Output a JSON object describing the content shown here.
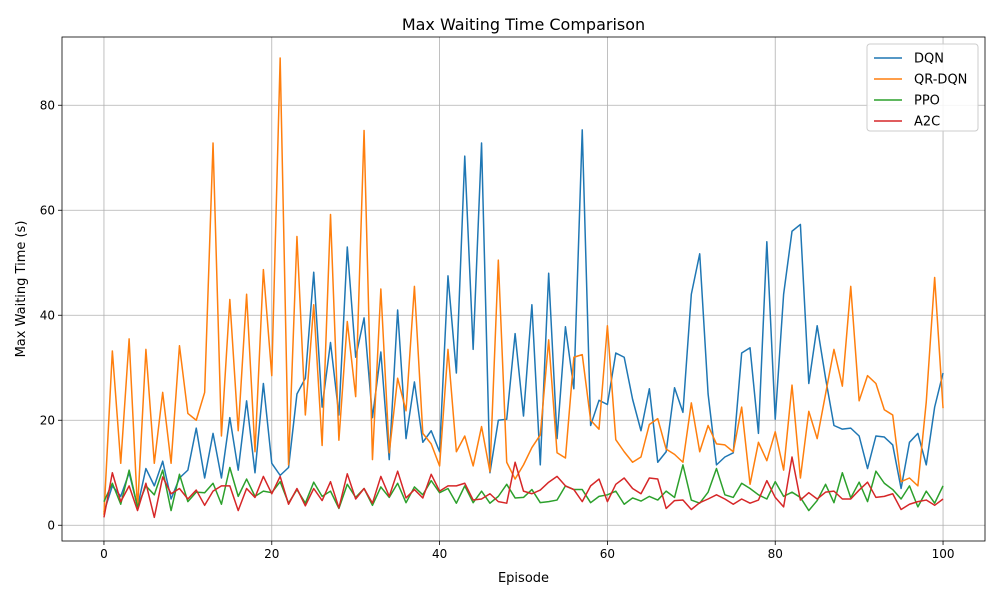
{
  "chart_data": {
    "type": "line",
    "title": "Max Waiting Time Comparison",
    "xlabel": "Episode",
    "ylabel": "Max Waiting Time (s)",
    "xlim": [
      -5,
      105
    ],
    "ylim": [
      -3,
      93
    ],
    "xticks": [
      0,
      20,
      40,
      60,
      80,
      100
    ],
    "yticks": [
      0,
      20,
      40,
      60,
      80
    ],
    "grid": true,
    "legend_position": "top-right",
    "series": [
      {
        "name": "DQN",
        "color": "#1f77b4",
        "values": [
          2.5,
          7.5,
          5.5,
          10.0,
          3.5,
          10.8,
          7.5,
          12.2,
          5.0,
          9.0,
          10.5,
          18.5,
          9.0,
          17.5,
          9.0,
          20.5,
          10.5,
          23.7,
          10.0,
          27.0,
          11.8,
          9.5,
          11.0,
          25.0,
          28.0,
          48.2,
          22.5,
          34.8,
          21.0,
          53.0,
          32.0,
          39.5,
          20.5,
          33.0,
          12.5,
          41.0,
          16.5,
          27.3,
          15.8,
          18.0,
          14.0,
          47.5,
          29.0,
          70.3,
          33.5,
          72.8,
          10.0,
          20.0,
          20.2,
          36.5,
          20.8,
          42.0,
          11.5,
          48.0,
          16.5,
          37.8,
          26.0,
          75.3,
          19.0,
          23.8,
          23.0,
          32.8,
          32.0,
          24.0,
          18.0,
          26.0,
          12.0,
          14.0,
          26.2,
          21.5,
          44.0,
          51.7,
          25.0,
          11.5,
          13.0,
          13.8,
          32.8,
          33.8,
          17.5,
          54.0,
          20.2,
          44.0,
          56.0,
          57.3,
          27.0,
          38.0,
          28.0,
          19.0,
          18.3,
          18.5,
          17.0,
          10.8,
          17.0,
          16.8,
          15.3,
          7.0,
          15.8,
          17.5,
          11.5,
          22.5,
          29.0
        ]
      },
      {
        "name": "QR-DQN",
        "color": "#ff7f0e",
        "values": [
          2.0,
          33.2,
          11.8,
          35.5,
          3.0,
          33.5,
          11.8,
          25.3,
          11.8,
          34.2,
          21.3,
          20.0,
          25.3,
          72.8,
          17.0,
          43.0,
          18.0,
          44.0,
          14.0,
          48.7,
          28.5,
          89.0,
          11.5,
          55.0,
          21.0,
          42.0,
          15.2,
          59.2,
          16.2,
          38.8,
          24.5,
          75.2,
          12.5,
          45.0,
          13.8,
          28.0,
          21.8,
          45.5,
          17.5,
          15.5,
          11.3,
          33.5,
          14.0,
          17.0,
          11.3,
          18.8,
          10.2,
          50.5,
          12.0,
          8.8,
          11.5,
          14.8,
          17.2,
          35.3,
          13.8,
          12.8,
          32.0,
          32.5,
          20.0,
          18.3,
          38.0,
          16.3,
          14.0,
          12.0,
          13.0,
          19.2,
          20.3,
          14.5,
          13.5,
          12.0,
          23.3,
          14.0,
          19.0,
          15.5,
          15.3,
          14.0,
          22.5,
          7.8,
          15.8,
          12.3,
          17.8,
          10.5,
          26.7,
          9.0,
          21.7,
          16.5,
          25.0,
          33.5,
          26.5,
          45.5,
          23.7,
          28.5,
          27.0,
          22.0,
          21.0,
          8.3,
          9.0,
          7.5,
          23.5,
          47.2,
          22.3
        ]
      },
      {
        "name": "PPO",
        "color": "#2ca02c",
        "values": [
          4.5,
          8.0,
          4.0,
          10.5,
          3.5,
          7.5,
          5.8,
          10.5,
          2.8,
          9.7,
          4.5,
          6.3,
          6.2,
          8.0,
          4.0,
          11.0,
          5.5,
          8.8,
          5.5,
          6.5,
          6.2,
          8.3,
          4.2,
          6.8,
          4.2,
          8.2,
          5.5,
          6.5,
          3.2,
          7.8,
          5.3,
          7.0,
          3.8,
          7.3,
          5.3,
          8.0,
          4.3,
          7.3,
          5.8,
          8.5,
          6.2,
          7.0,
          4.2,
          7.5,
          4.3,
          6.5,
          4.2,
          5.5,
          7.8,
          5.2,
          5.3,
          6.8,
          4.3,
          4.5,
          4.8,
          7.5,
          6.8,
          6.8,
          4.3,
          5.5,
          5.8,
          6.5,
          4.0,
          5.2,
          4.6,
          5.5,
          4.8,
          6.5,
          5.3,
          11.5,
          4.8,
          4.2,
          6.3,
          10.8,
          5.8,
          5.3,
          8.0,
          7.0,
          5.8,
          5.0,
          8.3,
          5.5,
          6.3,
          5.3,
          2.8,
          4.7,
          7.8,
          4.3,
          10.0,
          5.2,
          8.2,
          4.5,
          10.3,
          8.0,
          6.8,
          5.0,
          7.5,
          3.5,
          6.5,
          4.2,
          7.5
        ]
      },
      {
        "name": "A2C",
        "color": "#d62728",
        "values": [
          1.5,
          10.0,
          4.5,
          7.5,
          2.8,
          8.0,
          1.5,
          9.2,
          6.0,
          7.0,
          5.0,
          6.7,
          3.8,
          6.5,
          7.5,
          7.5,
          2.8,
          7.0,
          5.3,
          9.3,
          6.0,
          9.3,
          4.0,
          7.0,
          3.7,
          7.0,
          4.7,
          8.3,
          3.3,
          9.8,
          5.0,
          7.0,
          4.2,
          9.3,
          5.5,
          10.3,
          5.2,
          6.8,
          5.2,
          9.7,
          6.5,
          7.5,
          7.5,
          8.0,
          4.8,
          5.0,
          6.0,
          4.5,
          4.2,
          12.0,
          6.5,
          6.0,
          6.7,
          8.2,
          9.3,
          7.5,
          6.8,
          4.5,
          7.5,
          8.8,
          4.5,
          7.8,
          9.0,
          7.0,
          6.0,
          9.0,
          8.8,
          3.2,
          4.7,
          4.8,
          3.0,
          4.3,
          5.0,
          5.8,
          5.0,
          4.0,
          5.0,
          4.2,
          4.8,
          8.5,
          5.3,
          3.5,
          13.0,
          4.8,
          6.2,
          5.0,
          6.3,
          6.5,
          5.0,
          5.0,
          6.7,
          8.2,
          5.3,
          5.5,
          6.0,
          3.0,
          4.0,
          4.5,
          4.8,
          3.8,
          5.0
        ]
      }
    ]
  }
}
